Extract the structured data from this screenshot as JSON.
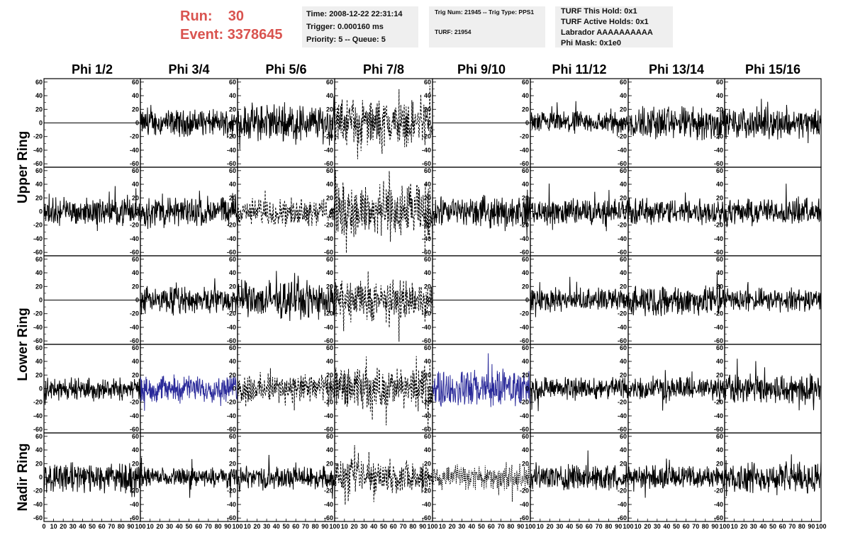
{
  "header": {
    "run_label": "Run:",
    "run_value": "30",
    "event_label": "Event:",
    "event_value": "3378645"
  },
  "info": {
    "time": "Time: 2008-12-22 22:31:14",
    "trigger": "Trigger: 0.000160 ms",
    "priority": "Priority: 5 -- Queue: 5",
    "trig_num": "Trig Num: 21945 -- Trig Type: PPS1",
    "turf": "TURF: 21954",
    "turf_hold": "TURF This Hold: 0x1",
    "turf_active": "TURF Active Holds: 0x1",
    "labrador": "Labrador AAAAAAAAAA",
    "phi_mask": "Phi Mask: 0x1e0"
  },
  "chart_data": {
    "type": "line",
    "title": "",
    "columns": [
      "Phi 1/2",
      "Phi 3/4",
      "Phi 5/6",
      "Phi 7/8",
      "Phi 9/10",
      "Phi 11/12",
      "Phi 13/14",
      "Phi 15/16"
    ],
    "ring_labels": [
      "Upper Ring",
      "Lower Ring",
      "Nadir Ring"
    ],
    "xlim": [
      0,
      100
    ],
    "ylim": [
      -65,
      65
    ],
    "y_ticks": [
      -60,
      -40,
      -20,
      0,
      20,
      40,
      60
    ],
    "x_ticks": [
      0,
      10,
      20,
      30,
      40,
      50,
      60,
      70,
      80,
      90,
      100
    ],
    "grid": false,
    "series_color_default": "#000000",
    "series_color_highlight": "#2a2a9a",
    "panel_rows": [
      [
        {
          "style": "flat",
          "amp": 0
        },
        {
          "style": "solid",
          "amp": 14
        },
        {
          "style": "solid",
          "amp": 20
        },
        {
          "style": "dashed",
          "amp": 24
        },
        {
          "style": "flat",
          "amp": 0
        },
        {
          "style": "solid",
          "amp": 12
        },
        {
          "style": "solid",
          "amp": 18
        },
        {
          "style": "solid",
          "amp": 16
        }
      ],
      [
        {
          "style": "solid",
          "amp": 14
        },
        {
          "style": "solid",
          "amp": 16
        },
        {
          "style": "dashed",
          "amp": 14
        },
        {
          "style": "dashed",
          "amp": 30
        },
        {
          "style": "solid",
          "amp": 16
        },
        {
          "style": "solid",
          "amp": 14
        },
        {
          "style": "solid",
          "amp": 14
        },
        {
          "style": "solid",
          "amp": 14
        }
      ],
      [
        {
          "style": "flat",
          "amp": 0
        },
        {
          "style": "solid",
          "amp": 14
        },
        {
          "style": "solid",
          "amp": 20
        },
        {
          "style": "dashed",
          "amp": 22
        },
        {
          "style": "flat",
          "amp": 0
        },
        {
          "style": "solid",
          "amp": 12
        },
        {
          "style": "solid",
          "amp": 16
        },
        {
          "style": "solid",
          "amp": 12
        }
      ],
      [
        {
          "style": "solid",
          "amp": 12
        },
        {
          "style": "highlight",
          "amp": 14
        },
        {
          "style": "dashed",
          "amp": 16
        },
        {
          "style": "dashed",
          "amp": 22
        },
        {
          "style": "highlight",
          "amp": 20
        },
        {
          "style": "solid",
          "amp": 12
        },
        {
          "style": "solid",
          "amp": 12
        },
        {
          "style": "solid",
          "amp": 16
        }
      ],
      [
        {
          "style": "solid",
          "amp": 16
        },
        {
          "style": "solid",
          "amp": 10
        },
        {
          "style": "solid",
          "amp": 12
        },
        {
          "style": "dashed",
          "amp": 18
        },
        {
          "style": "dotted",
          "amp": 14
        },
        {
          "style": "solid",
          "amp": 14
        },
        {
          "style": "solid",
          "amp": 12
        },
        {
          "style": "solid",
          "amp": 16
        }
      ]
    ]
  }
}
